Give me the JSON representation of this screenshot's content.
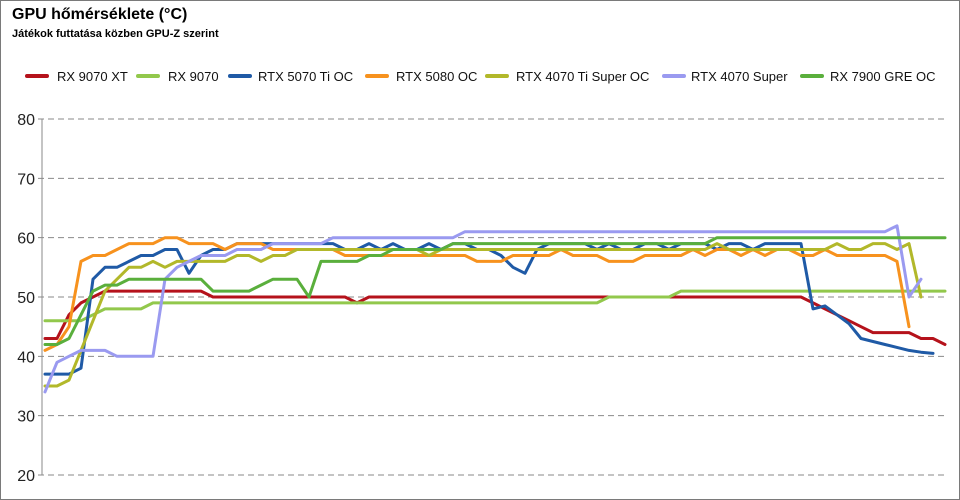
{
  "chart_data": {
    "type": "line",
    "title": "GPU hőmérséklete (°C)",
    "subtitle": "Játékok futtatása közben GPU-Z szerint",
    "ylim": [
      20,
      80
    ],
    "yticks": [
      20,
      30,
      40,
      50,
      60,
      70,
      80
    ],
    "grid": true,
    "legend": "top",
    "series": [
      {
        "name": "RX 9070 XT",
        "color": "#b5121b",
        "values": [
          43,
          43,
          47,
          49,
          50,
          51,
          51,
          51,
          51,
          51,
          51,
          51,
          51,
          51,
          50,
          50,
          50,
          50,
          50,
          50,
          50,
          50,
          50,
          50,
          50,
          50,
          49,
          50,
          50,
          50,
          50,
          50,
          50,
          50,
          50,
          50,
          50,
          50,
          50,
          50,
          50,
          50,
          50,
          50,
          50,
          50,
          50,
          50,
          50,
          50,
          50,
          50,
          50,
          50,
          50,
          50,
          50,
          50,
          50,
          50,
          50,
          50,
          50,
          50,
          49,
          48,
          47,
          46,
          45,
          44,
          44,
          44,
          44,
          43,
          43,
          42
        ]
      },
      {
        "name": "RX 9070",
        "color": "#92c84c",
        "values": [
          46,
          46,
          46,
          46,
          47,
          48,
          48,
          48,
          48,
          49,
          49,
          49,
          49,
          49,
          49,
          49,
          49,
          49,
          49,
          49,
          49,
          49,
          49,
          49,
          49,
          49,
          49,
          49,
          49,
          49,
          49,
          49,
          49,
          49,
          49,
          49,
          49,
          49,
          49,
          49,
          49,
          49,
          49,
          49,
          49,
          49,
          49,
          50,
          50,
          50,
          50,
          50,
          50,
          51,
          51,
          51,
          51,
          51,
          51,
          51,
          51,
          51,
          51,
          51,
          51,
          51,
          51,
          51,
          51,
          51,
          51,
          51,
          51,
          51,
          51,
          51
        ]
      },
      {
        "name": "RTX 5070 Ti OC",
        "color": "#1f5aa6",
        "values": [
          37,
          37,
          37,
          38,
          53,
          55,
          55,
          56,
          57,
          57,
          58,
          58,
          54,
          57,
          58,
          58,
          59,
          59,
          59,
          59,
          59,
          59,
          59,
          59,
          59,
          58,
          58,
          59,
          58,
          59,
          58,
          58,
          59,
          58,
          59,
          59,
          58,
          58,
          57,
          55,
          54,
          58,
          59,
          59,
          59,
          59,
          58,
          59,
          58,
          58,
          59,
          59,
          58,
          59,
          59,
          59,
          58,
          59,
          59,
          58,
          59,
          59,
          59,
          59,
          48,
          48.5,
          47,
          45.5,
          43,
          42.5,
          42,
          41.5,
          41,
          40.7,
          40.5
        ]
      },
      {
        "name": "RTX 5080 OC",
        "color": "#f7921e",
        "values": [
          41,
          42,
          45,
          56,
          57,
          57,
          58,
          59,
          59,
          59,
          60,
          60,
          59,
          59,
          59,
          58,
          59,
          59,
          59,
          58,
          58,
          58,
          58,
          58,
          58,
          57,
          57,
          57,
          57,
          57,
          57,
          57,
          57,
          57,
          57,
          57,
          56,
          56,
          56,
          57,
          57,
          57,
          57,
          58,
          57,
          57,
          57,
          56,
          56,
          56,
          57,
          57,
          57,
          57,
          58,
          57,
          58,
          58,
          57,
          58,
          57,
          58,
          58,
          57,
          57,
          58,
          57,
          57,
          57,
          57,
          57,
          56,
          45
        ]
      },
      {
        "name": "RTX 4070 Ti Super OC",
        "color": "#b2b82a",
        "values": [
          35,
          35,
          36,
          41,
          46,
          51,
          53,
          55,
          55,
          56,
          55,
          56,
          56,
          56,
          56,
          56,
          57,
          57,
          56,
          57,
          57,
          58,
          58,
          58,
          58,
          58,
          58,
          58,
          58,
          58,
          58,
          58,
          57,
          58,
          58,
          58,
          58,
          58,
          58,
          58,
          58,
          58,
          58,
          58,
          58,
          58,
          58,
          58,
          58,
          58,
          58,
          58,
          58,
          58,
          58,
          58,
          59,
          58,
          58,
          58,
          58,
          58,
          58,
          58,
          58,
          58,
          59,
          58,
          58,
          59,
          59,
          58,
          59,
          50
        ]
      },
      {
        "name": "RTX 4070 Super",
        "color": "#9a9af0",
        "values": [
          34,
          39,
          40,
          41,
          41,
          41,
          40,
          40,
          40,
          40,
          53,
          55,
          56,
          57,
          57,
          57,
          58,
          58,
          58,
          59,
          59,
          59,
          59,
          59,
          60,
          60,
          60,
          60,
          60,
          60,
          60,
          60,
          60,
          60,
          60,
          61,
          61,
          61,
          61,
          61,
          61,
          61,
          61,
          61,
          61,
          61,
          61,
          61,
          61,
          61,
          61,
          61,
          61,
          61,
          61,
          61,
          61,
          61,
          61,
          61,
          61,
          61,
          61,
          61,
          61,
          61,
          61,
          61,
          61,
          61,
          61,
          62,
          50,
          53
        ]
      },
      {
        "name": "RX 7900 GRE OC",
        "color": "#5aaf3c",
        "values": [
          42,
          42,
          43,
          47,
          51,
          52,
          52,
          53,
          53,
          53,
          53,
          53,
          53,
          53,
          51,
          51,
          51,
          51,
          52,
          53,
          53,
          53,
          50,
          56,
          56,
          56,
          56,
          57,
          57,
          58,
          58,
          58,
          58,
          58,
          59,
          59,
          59,
          59,
          59,
          59,
          59,
          59,
          59,
          59,
          59,
          59,
          59,
          59,
          59,
          59,
          59,
          59,
          59,
          59,
          59,
          59,
          60,
          60,
          60,
          60,
          60,
          60,
          60,
          60,
          60,
          60,
          60,
          60,
          60,
          60,
          60,
          60,
          60,
          60,
          60,
          60
        ]
      }
    ]
  }
}
